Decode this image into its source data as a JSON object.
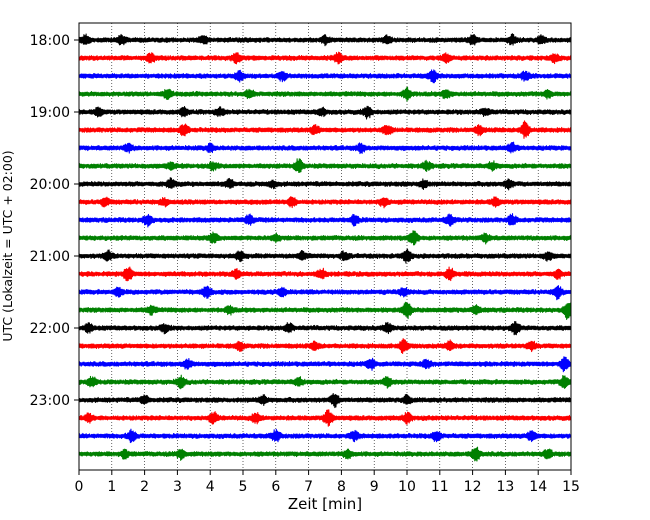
{
  "chart_data": {
    "type": "line",
    "title": "",
    "xlabel": "Zeit  [min]",
    "ylabel": "UTC (Lokalzeit = UTC + 02:00)",
    "xlim": [
      0,
      15
    ],
    "x_ticks": [
      "0",
      "1",
      "2",
      "3",
      "4",
      "5",
      "6",
      "7",
      "8",
      "9",
      "10",
      "11",
      "12",
      "13",
      "14",
      "15"
    ],
    "y_ticks": [
      {
        "label": "18:00",
        "trace": 0
      },
      {
        "label": "19:00",
        "trace": 4
      },
      {
        "label": "20:00",
        "trace": 8
      },
      {
        "label": "21:00",
        "trace": 12
      },
      {
        "label": "22:00",
        "trace": 16
      },
      {
        "label": "23:00",
        "trace": 20
      }
    ],
    "grid": "vertical dotted at each minute",
    "trace_interval_min": 15,
    "color_cycle": [
      "#000000",
      "#ff0000",
      "#0000ff",
      "#008000"
    ],
    "traces": [
      {
        "start": "18:00",
        "events": [
          [
            0.2,
            1.2
          ],
          [
            1.3,
            1.3
          ],
          [
            3.8,
            1.1
          ],
          [
            7.5,
            1.0
          ],
          [
            9.4,
            1.0
          ],
          [
            12.0,
            1.2
          ],
          [
            13.2,
            1.2
          ],
          [
            14.1,
            1.0
          ]
        ]
      },
      {
        "start": "18:15",
        "events": [
          [
            2.2,
            1.2
          ],
          [
            4.8,
            1.2
          ],
          [
            7.9,
            1.3
          ],
          [
            11.2,
            1.1
          ],
          [
            14.5,
            1.2
          ]
        ]
      },
      {
        "start": "18:30",
        "events": [
          [
            4.9,
            1.3
          ],
          [
            6.2,
            1.3
          ],
          [
            10.8,
            1.6
          ],
          [
            13.6,
            1.2
          ]
        ]
      },
      {
        "start": "18:45",
        "events": [
          [
            2.7,
            1.1
          ],
          [
            5.2,
            1.1
          ],
          [
            10.0,
            1.6
          ],
          [
            11.2,
            1.2
          ],
          [
            14.3,
            1.0
          ]
        ]
      },
      {
        "start": "19:00",
        "events": [
          [
            0.6,
            1.1
          ],
          [
            3.2,
            1.0
          ],
          [
            4.3,
            1.0
          ],
          [
            7.4,
            1.0
          ],
          [
            8.8,
            1.5
          ],
          [
            12.4,
            1.0
          ]
        ]
      },
      {
        "start": "19:15",
        "events": [
          [
            3.2,
            1.6
          ],
          [
            7.2,
            1.2
          ],
          [
            9.4,
            1.3
          ],
          [
            12.2,
            1.2
          ],
          [
            13.6,
            2.4
          ]
        ]
      },
      {
        "start": "19:30",
        "events": [
          [
            1.5,
            1.0
          ],
          [
            4.0,
            1.0
          ],
          [
            8.6,
            1.2
          ],
          [
            13.2,
            1.3
          ]
        ]
      },
      {
        "start": "19:45",
        "events": [
          [
            2.8,
            1.0
          ],
          [
            4.1,
            1.0
          ],
          [
            6.7,
            1.8
          ],
          [
            10.6,
            1.2
          ],
          [
            12.6,
            1.1
          ]
        ]
      },
      {
        "start": "20:00",
        "events": [
          [
            2.8,
            1.3
          ],
          [
            4.6,
            1.1
          ],
          [
            5.9,
            1.0
          ],
          [
            10.5,
            1.1
          ],
          [
            13.1,
            1.3
          ]
        ]
      },
      {
        "start": "20:15",
        "events": [
          [
            0.8,
            1.2
          ],
          [
            2.6,
            1.0
          ],
          [
            6.5,
            1.3
          ],
          [
            9.3,
            1.2
          ],
          [
            12.7,
            1.1
          ]
        ]
      },
      {
        "start": "20:30",
        "events": [
          [
            2.1,
            1.6
          ],
          [
            5.2,
            1.3
          ],
          [
            8.4,
            1.3
          ],
          [
            11.3,
            1.5
          ],
          [
            13.2,
            1.4
          ]
        ]
      },
      {
        "start": "20:45",
        "events": [
          [
            4.1,
            1.3
          ],
          [
            6.0,
            1.0
          ],
          [
            10.2,
            2.0
          ],
          [
            12.4,
            1.1
          ]
        ]
      },
      {
        "start": "21:00",
        "events": [
          [
            0.9,
            1.3
          ],
          [
            4.9,
            1.1
          ],
          [
            6.8,
            1.1
          ],
          [
            8.1,
            1.2
          ],
          [
            10.0,
            1.8
          ],
          [
            14.3,
            1.1
          ]
        ]
      },
      {
        "start": "21:15",
        "events": [
          [
            1.5,
            2.0
          ],
          [
            4.8,
            1.1
          ],
          [
            7.4,
            1.2
          ],
          [
            11.3,
            1.8
          ],
          [
            14.6,
            1.1
          ]
        ]
      },
      {
        "start": "21:30",
        "events": [
          [
            1.2,
            1.1
          ],
          [
            3.9,
            1.6
          ],
          [
            6.2,
            1.1
          ],
          [
            9.9,
            1.2
          ],
          [
            14.6,
            1.8
          ]
        ]
      },
      {
        "start": "21:45",
        "events": [
          [
            2.2,
            1.1
          ],
          [
            4.6,
            1.1
          ],
          [
            10.0,
            2.4
          ],
          [
            12.1,
            1.0
          ],
          [
            14.9,
            2.4
          ]
        ]
      },
      {
        "start": "22:00",
        "events": [
          [
            0.3,
            1.1
          ],
          [
            2.6,
            1.1
          ],
          [
            6.4,
            1.1
          ],
          [
            9.4,
            1.3
          ],
          [
            13.3,
            1.6
          ]
        ]
      },
      {
        "start": "22:15",
        "events": [
          [
            4.9,
            1.1
          ],
          [
            7.2,
            1.0
          ],
          [
            9.9,
            1.9
          ],
          [
            11.3,
            1.3
          ],
          [
            13.8,
            1.2
          ]
        ]
      },
      {
        "start": "22:30",
        "events": [
          [
            3.3,
            1.3
          ],
          [
            8.9,
            1.4
          ],
          [
            10.6,
            1.1
          ],
          [
            14.8,
            1.8
          ]
        ]
      },
      {
        "start": "22:45",
        "events": [
          [
            0.4,
            1.3
          ],
          [
            3.1,
            1.6
          ],
          [
            6.7,
            1.2
          ],
          [
            9.4,
            1.3
          ],
          [
            14.8,
            1.6
          ]
        ]
      },
      {
        "start": "23:00",
        "events": [
          [
            2.0,
            1.1
          ],
          [
            5.6,
            1.2
          ],
          [
            7.8,
            1.8
          ],
          [
            10.0,
            1.2
          ]
        ]
      },
      {
        "start": "23:15",
        "events": [
          [
            0.3,
            1.1
          ],
          [
            4.1,
            1.5
          ],
          [
            5.4,
            1.4
          ],
          [
            7.6,
            2.2
          ],
          [
            10.0,
            1.3
          ]
        ]
      },
      {
        "start": "23:30",
        "events": [
          [
            1.6,
            1.6
          ],
          [
            6.0,
            1.5
          ],
          [
            8.4,
            1.2
          ],
          [
            10.9,
            1.4
          ],
          [
            13.8,
            1.4
          ]
        ]
      },
      {
        "start": "23:45",
        "events": [
          [
            1.4,
            1.1
          ],
          [
            3.1,
            1.4
          ],
          [
            8.2,
            1.1
          ],
          [
            12.1,
            2.0
          ],
          [
            14.3,
            1.1
          ]
        ]
      }
    ]
  }
}
